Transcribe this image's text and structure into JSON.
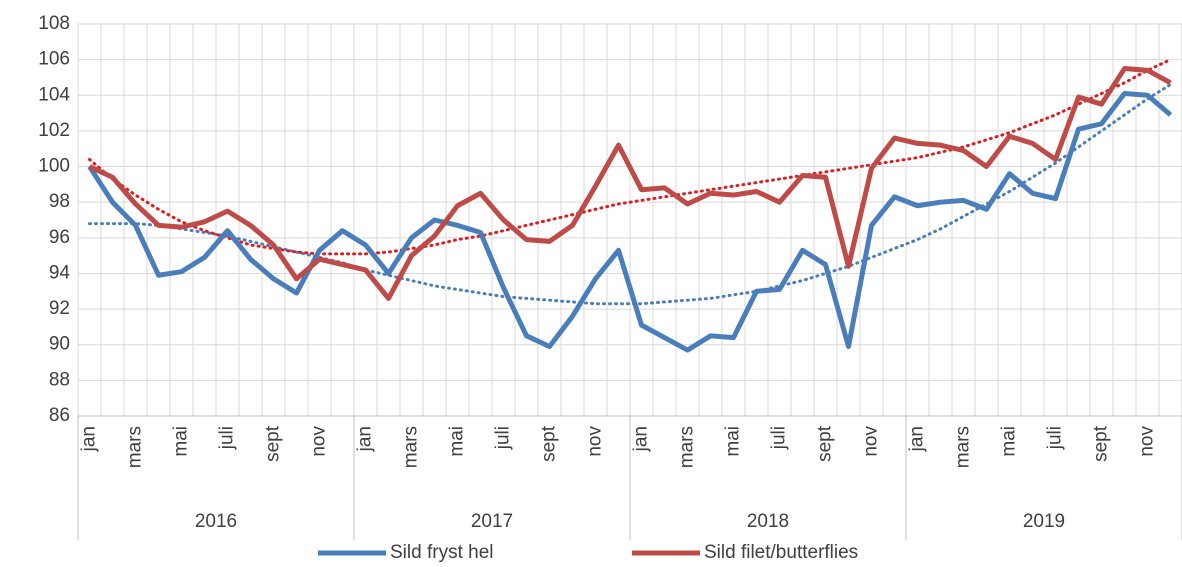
{
  "chart_data": {
    "type": "line",
    "categories": [
      "jan",
      null,
      "mars",
      null,
      "mai",
      null,
      "juli",
      null,
      "sept",
      null,
      "nov",
      null,
      "jan",
      null,
      "mars",
      null,
      "mai",
      null,
      "juli",
      null,
      "sept",
      null,
      "nov",
      null,
      "jan",
      null,
      "mars",
      null,
      "mai",
      null,
      "juli",
      null,
      "sept",
      null,
      "nov",
      null,
      "jan",
      null,
      "mars",
      null,
      "mai",
      null,
      "juli",
      null,
      "sept",
      null,
      "nov",
      null
    ],
    "years": [
      "2016",
      "2017",
      "2018",
      "2019"
    ],
    "series": [
      {
        "name": "Sild fryst hel",
        "color": "#4a7ebb",
        "values": [
          100,
          98,
          96.7,
          93.9,
          94.1,
          94.9,
          96.4,
          94.8,
          93.7,
          92.9,
          95.3,
          96.4,
          95.6,
          94,
          96,
          97,
          96.7,
          96.3,
          93.2,
          90.5,
          89.9,
          91.6,
          93.7,
          95.3,
          91.1,
          90.4,
          89.7,
          90.5,
          90.4,
          93,
          93.1,
          95.3,
          94.5,
          89.9,
          96.7,
          98.3,
          97.8,
          98,
          98.1,
          97.6,
          99.6,
          98.5,
          98.2,
          102.1,
          102.4,
          104.1,
          104,
          102.9
        ]
      },
      {
        "name": "Sild filet/butterflies",
        "color": "#be4b48",
        "values": [
          100,
          99.4,
          97.9,
          96.7,
          96.6,
          96.9,
          97.5,
          96.7,
          95.6,
          93.7,
          94.8,
          94.5,
          94.2,
          92.6,
          95,
          96.1,
          97.8,
          98.5,
          97,
          95.9,
          95.8,
          96.7,
          98.9,
          101.2,
          98.7,
          98.8,
          97.9,
          98.5,
          98.4,
          98.6,
          98,
          99.5,
          99.4,
          94.4,
          99.9,
          101.6,
          101.3,
          101.2,
          100.9,
          100,
          101.7,
          101.3,
          100.4,
          103.9,
          103.5,
          105.5,
          105.4,
          104.7
        ]
      }
    ],
    "trendlines": [
      {
        "color": "#4a7ebb",
        "values": [
          96.8,
          96.8,
          96.8,
          96.7,
          96.5,
          96.3,
          96.1,
          95.8,
          95.5,
          95.2,
          94.9,
          94.6,
          94.2,
          93.9,
          93.6,
          93.3,
          93.1,
          92.9,
          92.7,
          92.6,
          92.5,
          92.4,
          92.3,
          92.3,
          92.3,
          92.4,
          92.5,
          92.6,
          92.8,
          93,
          93.3,
          93.6,
          94,
          94.4,
          94.9,
          95.4,
          95.9,
          96.5,
          97.2,
          97.9,
          98.6,
          99.4,
          100.2,
          101.1,
          102,
          102.9,
          103.8,
          104.6
        ]
      },
      {
        "color": "#e31a1c",
        "values": [
          100.4,
          99.3,
          98.4,
          97.6,
          96.9,
          96.4,
          96,
          95.6,
          95.4,
          95.2,
          95.1,
          95.1,
          95.1,
          95.2,
          95.4,
          95.6,
          95.9,
          96.1,
          96.4,
          96.7,
          97,
          97.3,
          97.6,
          97.9,
          98.1,
          98.3,
          98.5,
          98.7,
          98.9,
          99.1,
          99.3,
          99.5,
          99.7,
          99.9,
          100.1,
          100.3,
          100.5,
          100.8,
          101.1,
          101.5,
          101.9,
          102.4,
          102.9,
          103.5,
          104.1,
          104.7,
          105.4,
          106
        ]
      }
    ],
    "ylim": [
      86,
      108
    ],
    "yticks": [
      86,
      88,
      90,
      92,
      94,
      96,
      98,
      100,
      102,
      104,
      106,
      108
    ],
    "grid": true
  }
}
